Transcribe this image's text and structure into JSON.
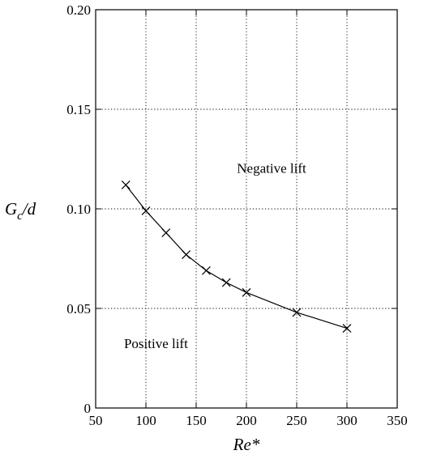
{
  "chart_data": {
    "type": "line",
    "x": [
      80,
      100,
      120,
      140,
      160,
      180,
      200,
      250,
      300
    ],
    "series": [
      {
        "values": [
          0.112,
          0.099,
          0.088,
          0.077,
          0.069,
          0.063,
          0.058,
          0.048,
          0.04
        ]
      }
    ],
    "marker": "x",
    "xlim": [
      50,
      350
    ],
    "ylim": [
      0,
      0.2
    ],
    "xticks": [
      "50",
      "100",
      "150",
      "200",
      "250",
      "300",
      "350"
    ],
    "yticks": [
      "0",
      "0.05",
      "0.10",
      "0.15",
      "0.20"
    ],
    "xlabel": "Re*",
    "ylabel_main": "G",
    "ylabel_sub": "c",
    "ylabel_tail": "/d",
    "grid": true,
    "annotations": [
      {
        "text": "Negative lift",
        "x": 225,
        "y": 0.118
      },
      {
        "text": "Positive lift",
        "x": 110,
        "y": 0.03
      }
    ]
  }
}
